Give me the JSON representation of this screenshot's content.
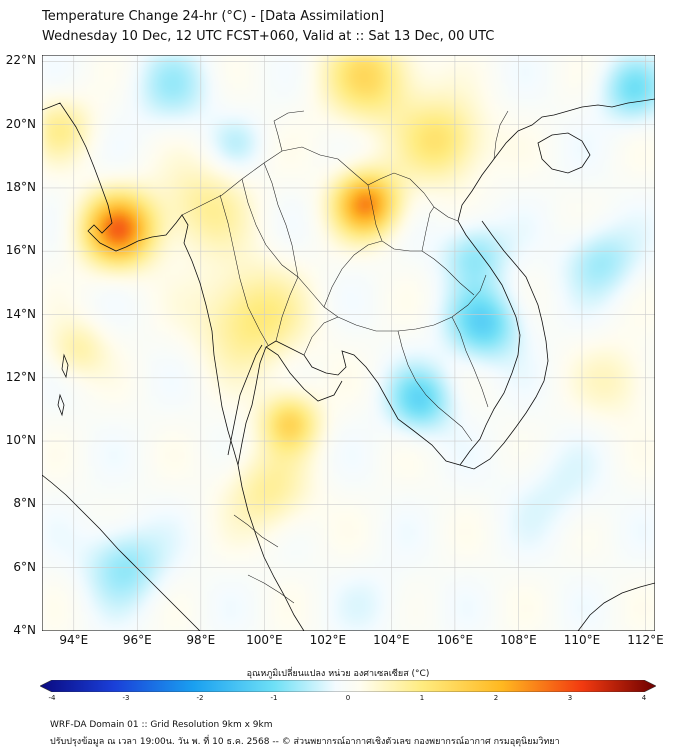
{
  "title": {
    "line1": "Temperature Change 24-hr (°C) - [Data Assimilation]",
    "line2": "Wednesday 10 Dec, 12 UTC FCST+060, Valid at :: Sat 13 Dec, 00 UTC"
  },
  "map": {
    "lat_labels": [
      "22°N",
      "20°N",
      "18°N",
      "16°N",
      "14°N",
      "12°N",
      "10°N",
      "8°N",
      "6°N",
      "4°N"
    ],
    "lat_values": [
      22,
      20,
      18,
      16,
      14,
      12,
      10,
      8,
      6,
      4
    ],
    "lon_labels": [
      "94°E",
      "96°E",
      "98°E",
      "100°E",
      "102°E",
      "104°E",
      "106°E",
      "108°E",
      "110°E",
      "112°E"
    ],
    "lon_values": [
      94,
      96,
      98,
      100,
      102,
      104,
      106,
      108,
      110,
      112
    ],
    "extent": {
      "lon_min": 93,
      "lon_max": 112.3,
      "lat_min": 4,
      "lat_max": 22.2
    },
    "field_blobs": [
      {
        "lon": 95.3,
        "lat": 16.8,
        "value": 2.6,
        "spread": 1.1
      },
      {
        "lon": 103.1,
        "lat": 17.6,
        "value": 2.4,
        "spread": 1.0
      },
      {
        "lon": 100.7,
        "lat": 10.7,
        "value": 1.4,
        "spread": 0.9
      },
      {
        "lon": 103.2,
        "lat": 21.6,
        "value": 1.3,
        "spread": 1.4
      },
      {
        "lon": 105.5,
        "lat": 19.6,
        "value": 1.2,
        "spread": 1.3
      },
      {
        "lon": 99.5,
        "lat": 14.0,
        "value": 1.1,
        "spread": 1.6
      },
      {
        "lon": 98.0,
        "lat": 17.5,
        "value": 0.8,
        "spread": 1.4
      },
      {
        "lon": 100.0,
        "lat": 8.5,
        "value": 0.8,
        "spread": 1.3
      },
      {
        "lon": 93.5,
        "lat": 20.0,
        "value": 0.8,
        "spread": 1.0
      },
      {
        "lon": 94.0,
        "lat": 13.0,
        "value": 0.7,
        "spread": 0.9
      },
      {
        "lon": 111.0,
        "lat": 12.0,
        "value": 0.5,
        "spread": 1.2
      },
      {
        "lon": 106.8,
        "lat": 13.8,
        "value": -1.2,
        "spread": 1.1
      },
      {
        "lon": 104.8,
        "lat": 11.4,
        "value": -1.1,
        "spread": 1.0
      },
      {
        "lon": 106.5,
        "lat": 16.0,
        "value": -0.8,
        "spread": 1.0
      },
      {
        "lon": 110.5,
        "lat": 15.8,
        "value": -0.7,
        "spread": 1.1
      },
      {
        "lon": 111.5,
        "lat": 21.2,
        "value": -0.9,
        "spread": 1.0
      },
      {
        "lon": 95.5,
        "lat": 6.2,
        "value": -0.8,
        "spread": 1.2
      },
      {
        "lon": 97.0,
        "lat": 21.3,
        "value": -0.6,
        "spread": 1.2
      },
      {
        "lon": 99.0,
        "lat": 19.5,
        "value": -0.4,
        "spread": 0.8
      },
      {
        "lon": 109.0,
        "lat": 8.5,
        "value": -0.3,
        "spread": 1.4
      },
      {
        "lon": 103.5,
        "lat": 5.0,
        "value": -0.2,
        "spread": 1.2
      }
    ]
  },
  "colorbar": {
    "title": "อุณหภูมิเปลี่ยนแปลง หน่วย องศาเซลเซียส (°C)",
    "ticks": [
      "-4",
      "-3",
      "-2",
      "-1",
      "0",
      "1",
      "2",
      "3",
      "4"
    ],
    "tick_values": [
      -4,
      -3,
      -2,
      -1,
      0,
      1,
      2,
      3,
      4
    ]
  },
  "footer": {
    "line1": "WRF-DA Domain 01 :: Grid Resolution 9km x 9km",
    "line2": "ปรับปรุงข้อมูล ณ เวลา 19:00น. วัน พ. ที่ 10 ธ.ค. 2568 -- © ส่วนพยากรณ์อากาศเชิงตัวเลข กองพยากรณ์อากาศ กรมอุตุนิยมวิทยา"
  },
  "colors": {
    "land_line": "#111111",
    "grid": "#cccccc",
    "frame": "#000000"
  }
}
